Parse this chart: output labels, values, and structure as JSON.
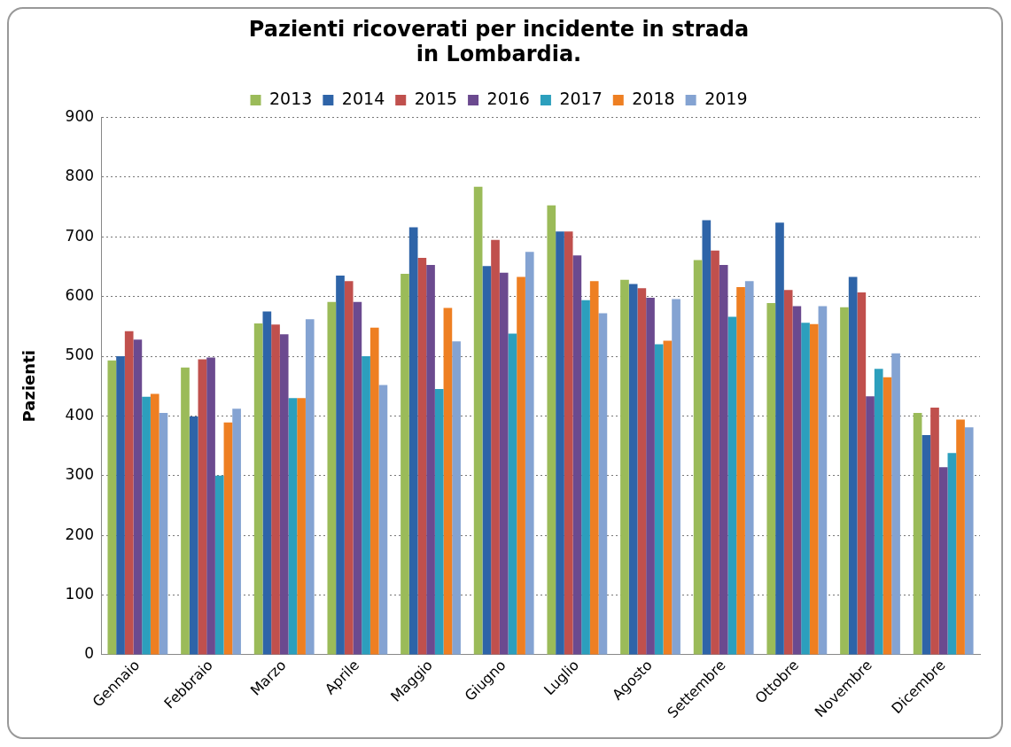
{
  "chart_data": {
    "type": "bar",
    "title": "Pazienti ricoverati per incidente in strada\nin Lombardia.",
    "ylabel": "Pazienti",
    "categories": [
      "Gennaio",
      "Febbraio",
      "Marzo",
      "Aprile",
      "Maggio",
      "Giugno",
      "Luglio",
      "Agosto",
      "Settembre",
      "Ottobre",
      "Novembre",
      "Dicembre"
    ],
    "series": [
      {
        "name": "2013",
        "color": "#9bbb59",
        "values": [
          493,
          481,
          555,
          591,
          638,
          784,
          753,
          628,
          661,
          589,
          582,
          405
        ]
      },
      {
        "name": "2014",
        "color": "#2e64a8",
        "values": [
          500,
          399,
          575,
          635,
          716,
          651,
          709,
          621,
          728,
          724,
          633,
          368
        ]
      },
      {
        "name": "2015",
        "color": "#c0504d",
        "values": [
          542,
          495,
          553,
          626,
          665,
          695,
          709,
          614,
          677,
          611,
          607,
          414
        ]
      },
      {
        "name": "2016",
        "color": "#6b4a8f",
        "values": [
          528,
          498,
          537,
          591,
          653,
          640,
          669,
          598,
          653,
          584,
          433,
          314
        ]
      },
      {
        "name": "2017",
        "color": "#2c9fbd",
        "values": [
          432,
          300,
          430,
          500,
          445,
          538,
          594,
          520,
          566,
          556,
          479,
          338
        ]
      },
      {
        "name": "2018",
        "color": "#ee7f22",
        "values": [
          437,
          389,
          430,
          548,
          581,
          633,
          626,
          526,
          616,
          554,
          465,
          394
        ]
      },
      {
        "name": "2019",
        "color": "#84a3d2",
        "values": [
          405,
          412,
          562,
          452,
          525,
          675,
          572,
          596,
          626,
          584,
          505,
          381
        ]
      }
    ],
    "ylim": [
      0,
      900
    ],
    "yticks": [
      0,
      100,
      200,
      300,
      400,
      500,
      600,
      700,
      800,
      900
    ],
    "grid": "y",
    "legend": "top"
  }
}
